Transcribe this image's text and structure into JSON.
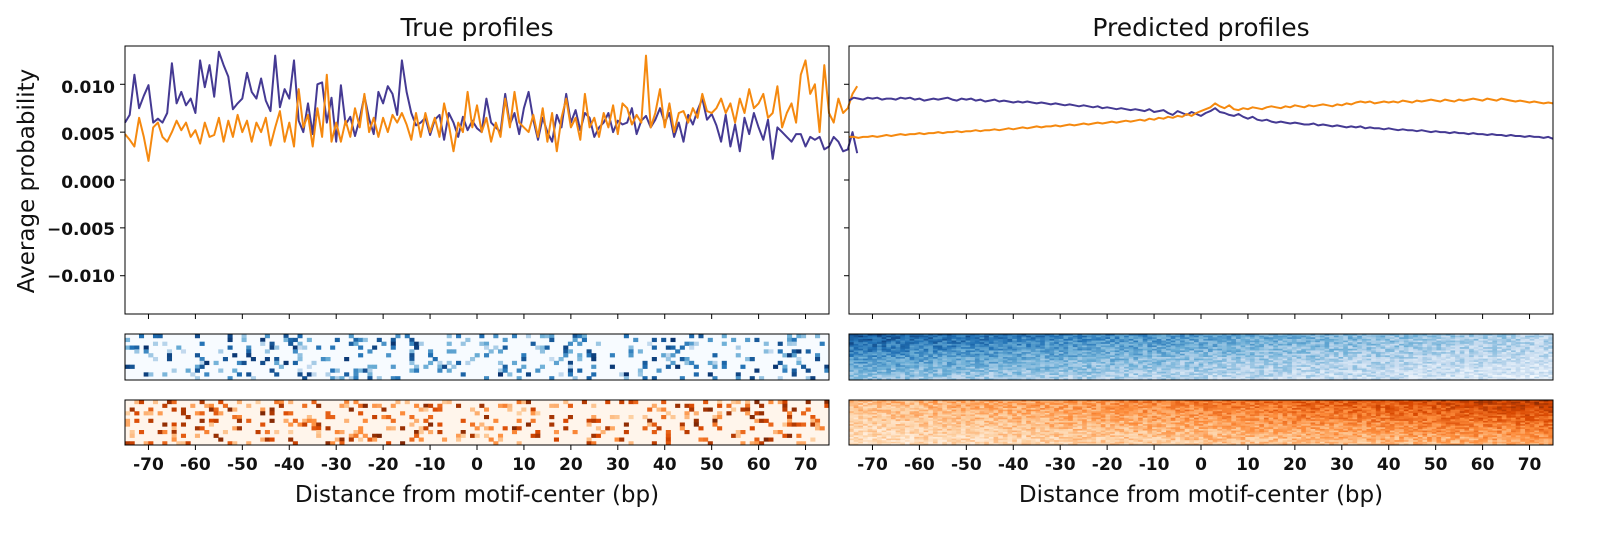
{
  "chart_data": [
    {
      "type": "line",
      "title": "True profiles",
      "ylabel": "Average probability",
      "xlabel": "Distance from motif-center (bp)",
      "xlim": [
        -75,
        75
      ],
      "ylim": [
        -0.014,
        0.014
      ],
      "xticks": [
        "-70",
        "-60",
        "-50",
        "-40",
        "-30",
        "-20",
        "-10",
        "0",
        "10",
        "20",
        "30",
        "40",
        "50",
        "60",
        "70"
      ],
      "yticks": [
        "0.010",
        "0.005",
        "0.000",
        "−0.005",
        "−0.010"
      ],
      "grid": false,
      "series": [
        {
          "color": "#453a93",
          "x_start": -75,
          "x_step": 1,
          "values": [
            0.006,
            0.0068,
            0.011,
            0.0075,
            0.0088,
            0.0099,
            0.006,
            0.0064,
            0.006,
            0.007,
            0.0122,
            0.008,
            0.0092,
            0.0078,
            0.0085,
            0.007,
            0.0125,
            0.0097,
            0.012,
            0.0087,
            0.0134,
            0.012,
            0.0108,
            0.0074,
            0.008,
            0.0085,
            0.0112,
            0.0092,
            0.0085,
            0.0106,
            0.0083,
            0.0072,
            0.013,
            0.0076,
            0.0095,
            0.0085,
            0.0125,
            0.0062,
            0.005,
            0.008,
            0.0048,
            0.01,
            0.0102,
            0.006,
            0.0086,
            0.004,
            0.0099,
            0.0058,
            0.0066,
            0.0046,
            0.0064,
            0.0088,
            0.0064,
            0.0048,
            0.0092,
            0.008,
            0.0098,
            0.009,
            0.0068,
            0.0125,
            0.0092,
            0.007,
            0.0057,
            0.006,
            0.0065,
            0.0047,
            0.0063,
            0.0068,
            0.0042,
            0.007,
            0.006,
            0.0045,
            0.0066,
            0.0052,
            0.0062,
            0.0054,
            0.005,
            0.0085,
            0.006,
            0.0055,
            0.005,
            0.009,
            0.0058,
            0.007,
            0.0048,
            0.0075,
            0.0092,
            0.0063,
            0.0042,
            0.0065,
            0.005,
            0.004,
            0.0068,
            0.0055,
            0.009,
            0.006,
            0.0073,
            0.0052,
            0.007,
            0.0065,
            0.0045,
            0.0055,
            0.006,
            0.007,
            0.005,
            0.0062,
            0.0058,
            0.006,
            0.0075,
            0.0048,
            0.0062,
            0.0067,
            0.0055,
            0.0063,
            0.0075,
            0.006,
            0.007,
            0.0045,
            0.006,
            0.004,
            0.0068,
            0.0058,
            0.0073,
            0.0085,
            0.0063,
            0.0069,
            0.0057,
            0.004,
            0.0068,
            0.0035,
            0.0058,
            0.003,
            0.0065,
            0.0048,
            0.007,
            0.0055,
            0.0042,
            0.0063,
            0.0022,
            0.0055,
            0.005,
            0.0045,
            0.004,
            0.0048,
            0.0048,
            0.0035,
            0.0045,
            0.0042,
            0.0045,
            0.0032,
            0.0035,
            0.0045,
            0.004,
            0.003,
            0.0032,
            0.005,
            0.0028
          ]
        },
        {
          "color": "#f5890f",
          "x_start": -75,
          "x_step": 1,
          "values": [
            0.0048,
            0.0042,
            0.0035,
            0.0065,
            0.0045,
            0.002,
            0.0055,
            0.006,
            0.0045,
            0.004,
            0.005,
            0.0062,
            0.0052,
            0.006,
            0.0045,
            0.0052,
            0.0038,
            0.006,
            0.0045,
            0.0047,
            0.0065,
            0.004,
            0.0062,
            0.0045,
            0.0068,
            0.005,
            0.0062,
            0.004,
            0.006,
            0.005,
            0.0065,
            0.0036,
            0.0055,
            0.0072,
            0.004,
            0.006,
            0.0035,
            0.0095,
            0.0055,
            0.0068,
            0.0035,
            0.0075,
            0.0045,
            0.011,
            0.004,
            0.006,
            0.004,
            0.0062,
            0.0045,
            0.0075,
            0.0055,
            0.009,
            0.005,
            0.0065,
            0.0045,
            0.0065,
            0.005,
            0.0068,
            0.006,
            0.007,
            0.0058,
            0.0042,
            0.007,
            0.0045,
            0.007,
            0.005,
            0.0065,
            0.0045,
            0.008,
            0.0058,
            0.003,
            0.006,
            0.005,
            0.0092,
            0.0055,
            0.0078,
            0.005,
            0.0065,
            0.004,
            0.006,
            0.0045,
            0.0085,
            0.0055,
            0.0092,
            0.006,
            0.0055,
            0.005,
            0.0068,
            0.0045,
            0.0075,
            0.004,
            0.007,
            0.003,
            0.0065,
            0.0085,
            0.0055,
            0.0065,
            0.0042,
            0.009,
            0.0055,
            0.0065,
            0.0045,
            0.007,
            0.0055,
            0.0078,
            0.0048,
            0.008,
            0.0075,
            0.0058,
            0.0068,
            0.006,
            0.013,
            0.0055,
            0.007,
            0.0095,
            0.0055,
            0.008,
            0.005,
            0.007,
            0.0072,
            0.006,
            0.0075,
            0.0065,
            0.009,
            0.0072,
            0.007,
            0.0075,
            0.0085,
            0.007,
            0.008,
            0.006,
            0.0085,
            0.007,
            0.0095,
            0.0075,
            0.008,
            0.009,
            0.0065,
            0.007,
            0.0098,
            0.0055,
            0.007,
            0.008,
            0.006,
            0.011,
            0.0125,
            0.009,
            0.01,
            0.005,
            0.012,
            0.007,
            0.006,
            0.0085,
            0.007,
            0.0075,
            0.009,
            0.0098
          ]
        }
      ],
      "heatmaps": [
        {
          "colormap": "Blues",
          "rows": 12,
          "cols": 151,
          "style": "sparse"
        },
        {
          "colormap": "Oranges",
          "rows": 12,
          "cols": 151,
          "style": "sparse"
        }
      ]
    },
    {
      "type": "line",
      "title": "Predicted profiles",
      "xlabel": "Distance from motif-center (bp)",
      "xlim": [
        -75,
        75
      ],
      "ylim": [
        -0.014,
        0.014
      ],
      "xticks": [
        "-70",
        "-60",
        "-50",
        "-40",
        "-30",
        "-20",
        "-10",
        "0",
        "10",
        "20",
        "30",
        "40",
        "50",
        "60",
        "70"
      ],
      "grid": false,
      "series": [
        {
          "color": "#453a93",
          "x_start": -75,
          "x_step": 1,
          "values": [
            0.0083,
            0.0086,
            0.0085,
            0.0084,
            0.0086,
            0.0085,
            0.0086,
            0.0084,
            0.0085,
            0.0085,
            0.0084,
            0.0086,
            0.0085,
            0.0086,
            0.0084,
            0.0085,
            0.0083,
            0.0084,
            0.0085,
            0.0084,
            0.0085,
            0.0086,
            0.0084,
            0.0083,
            0.0085,
            0.0084,
            0.0085,
            0.0083,
            0.0084,
            0.0082,
            0.0083,
            0.0084,
            0.0082,
            0.0083,
            0.0082,
            0.0081,
            0.0082,
            0.0081,
            0.0082,
            0.0081,
            0.008,
            0.0081,
            0.008,
            0.0079,
            0.008,
            0.0079,
            0.0078,
            0.0079,
            0.0078,
            0.0077,
            0.0078,
            0.0077,
            0.0076,
            0.0077,
            0.0075,
            0.0076,
            0.0075,
            0.0074,
            0.0075,
            0.0074,
            0.0073,
            0.0074,
            0.0073,
            0.0072,
            0.0074,
            0.0071,
            0.0072,
            0.0073,
            0.007,
            0.0068,
            0.0072,
            0.007,
            0.0068,
            0.0071,
            0.0069,
            0.0067,
            0.007,
            0.0072,
            0.0075,
            0.0071,
            0.007,
            0.0068,
            0.0067,
            0.0069,
            0.0066,
            0.0064,
            0.0066,
            0.0063,
            0.0062,
            0.0063,
            0.0061,
            0.006,
            0.0061,
            0.006,
            0.0059,
            0.006,
            0.0059,
            0.0058,
            0.0058,
            0.0059,
            0.0057,
            0.0058,
            0.0057,
            0.0056,
            0.0057,
            0.0056,
            0.0055,
            0.0056,
            0.0055,
            0.0056,
            0.0054,
            0.0055,
            0.0054,
            0.0054,
            0.0053,
            0.0054,
            0.0053,
            0.0052,
            0.0053,
            0.0052,
            0.0052,
            0.0051,
            0.0052,
            0.0051,
            0.005,
            0.0051,
            0.005,
            0.005,
            0.0049,
            0.005,
            0.0049,
            0.0049,
            0.0048,
            0.0049,
            0.0048,
            0.0048,
            0.0047,
            0.0048,
            0.0047,
            0.0047,
            0.0046,
            0.0047,
            0.0046,
            0.0046,
            0.0045,
            0.0046,
            0.0045,
            0.0045,
            0.0044,
            0.0045,
            0.0043
          ]
        },
        {
          "color": "#f5890f",
          "x_start": -75,
          "x_step": 1,
          "values": [
            0.0045,
            0.0045,
            0.0044,
            0.0045,
            0.0045,
            0.0046,
            0.0045,
            0.0046,
            0.0047,
            0.0046,
            0.0047,
            0.0048,
            0.0047,
            0.0048,
            0.0048,
            0.0049,
            0.0048,
            0.0049,
            0.0049,
            0.005,
            0.0049,
            0.005,
            0.005,
            0.0051,
            0.005,
            0.0051,
            0.0051,
            0.0052,
            0.0051,
            0.0052,
            0.0052,
            0.0053,
            0.0052,
            0.0053,
            0.0054,
            0.0053,
            0.0054,
            0.0055,
            0.0054,
            0.0055,
            0.0056,
            0.0055,
            0.0056,
            0.0056,
            0.0057,
            0.0056,
            0.0057,
            0.0058,
            0.0057,
            0.0058,
            0.0059,
            0.0058,
            0.0059,
            0.006,
            0.0059,
            0.006,
            0.0061,
            0.006,
            0.0061,
            0.0062,
            0.0061,
            0.0062,
            0.0063,
            0.0062,
            0.0064,
            0.0063,
            0.0065,
            0.0064,
            0.0066,
            0.0065,
            0.0067,
            0.0066,
            0.0069,
            0.0067,
            0.007,
            0.0072,
            0.0074,
            0.0076,
            0.008,
            0.0077,
            0.0075,
            0.0078,
            0.0074,
            0.0073,
            0.0075,
            0.0074,
            0.0076,
            0.0075,
            0.0074,
            0.0076,
            0.0077,
            0.0076,
            0.0075,
            0.0077,
            0.0076,
            0.0078,
            0.0077,
            0.0076,
            0.0078,
            0.0077,
            0.0078,
            0.0079,
            0.0078,
            0.0077,
            0.0079,
            0.0078,
            0.008,
            0.0079,
            0.0081,
            0.0082,
            0.0081,
            0.0082,
            0.008,
            0.0081,
            0.0082,
            0.0081,
            0.0082,
            0.0081,
            0.0083,
            0.0082,
            0.0081,
            0.0083,
            0.0082,
            0.0083,
            0.0084,
            0.0083,
            0.0082,
            0.0084,
            0.0083,
            0.0082,
            0.0084,
            0.0083,
            0.0084,
            0.0085,
            0.0084,
            0.0083,
            0.0085,
            0.0084,
            0.0083,
            0.0085,
            0.0084,
            0.0083,
            0.0082,
            0.0083,
            0.0082,
            0.0081,
            0.0082,
            0.0081,
            0.008,
            0.0081,
            0.008
          ]
        }
      ],
      "heatmaps": [
        {
          "colormap": "Blues",
          "rows": 28,
          "cols": 151,
          "style": "dense",
          "trend": "decreasing"
        },
        {
          "colormap": "Oranges",
          "rows": 28,
          "cols": 151,
          "style": "dense",
          "trend": "increasing"
        }
      ]
    }
  ]
}
